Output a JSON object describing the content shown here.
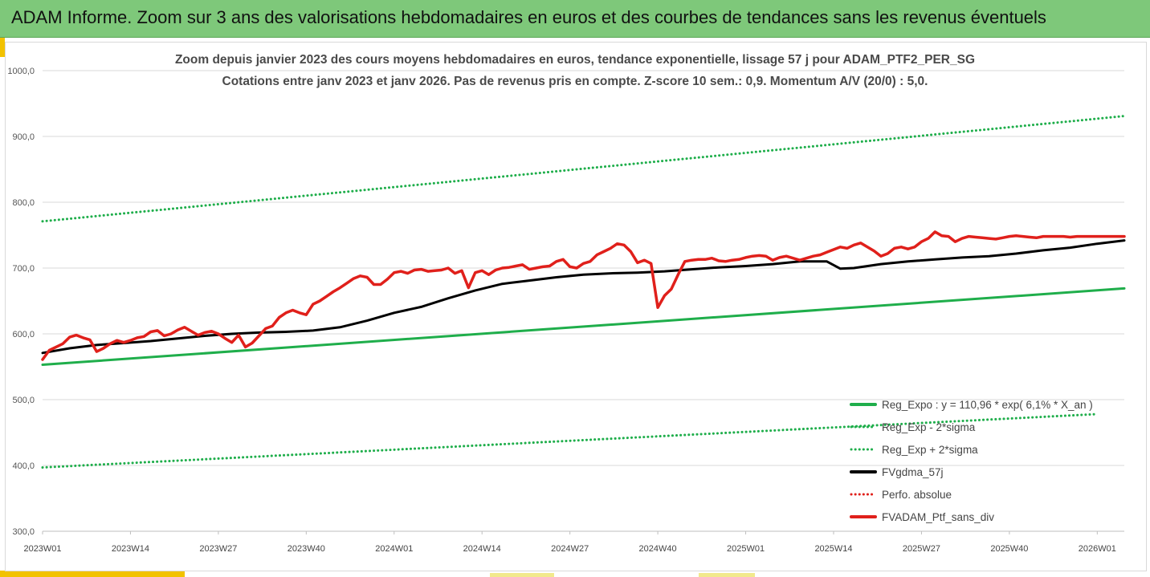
{
  "banner": {
    "title": "ADAM Informe. Zoom sur 3 ans des valorisations hebdomadaires en euros et des courbes de tendances sans les revenus éventuels",
    "color": "#7ec87a"
  },
  "chart_data": {
    "type": "line",
    "title": "Zoom depuis janvier 2023 des cours moyens hebdomadaires  en euros, tendance exponentielle, lissage 57 j pour ADAM_PTF2_PER_SG",
    "subtitle": "Cotations entre janv 2023 et janv 2026. Pas de revenus pris en compte. Z-score 10 sem.: 0,9. Momentum  A/V (20/0) : 5,0.",
    "xlabel": "",
    "ylabel": "",
    "ylim": [
      300,
      1000
    ],
    "yticks": [
      "300,0",
      "400,0",
      "500,0",
      "600,0",
      "700,0",
      "800,0",
      "900,0",
      "1000,0"
    ],
    "x_tick_labels": [
      "2023W01",
      "2023W14",
      "2023W27",
      "2023W40",
      "2024W01",
      "2024W14",
      "2024W27",
      "2024W40",
      "2025W01",
      "2025W14",
      "2025W27",
      "2025W40",
      "2026W01"
    ],
    "x_tick_weeks": [
      0,
      13,
      26,
      39,
      52,
      65,
      78,
      91,
      104,
      117,
      130,
      143,
      156
    ],
    "x_max_week": 160,
    "grid": "horizontal",
    "legend_position": "bottom-right",
    "series": [
      {
        "name": "Reg_Expo : y = 110,96 * exp( 6,1% *  X_an )",
        "color": "#1fae4b",
        "style": "solid",
        "x": [
          0,
          160
        ],
        "values": [
          553,
          669
        ]
      },
      {
        "name": "Reg_Exp - 2*sigma",
        "color": "#1fae4b",
        "style": "dotted",
        "x": [
          0,
          156
        ],
        "values": [
          397,
          478
        ]
      },
      {
        "name": "Reg_Exp + 2*sigma",
        "color": "#1fae4b",
        "style": "dotted",
        "x": [
          0,
          160
        ],
        "values": [
          771,
          931
        ]
      },
      {
        "name": "FVgdma_57j",
        "color": "#000000",
        "style": "solid",
        "x": [
          0,
          4,
          8,
          12,
          16,
          20,
          24,
          28,
          32,
          36,
          40,
          44,
          48,
          52,
          56,
          60,
          64,
          68,
          72,
          76,
          80,
          84,
          88,
          92,
          96,
          100,
          104,
          108,
          112,
          116,
          118,
          120,
          124,
          128,
          132,
          136,
          140,
          144,
          148,
          152,
          156,
          160
        ],
        "values": [
          571,
          578,
          583,
          586,
          589,
          593,
          597,
          600,
          602,
          603,
          605,
          610,
          620,
          632,
          641,
          654,
          666,
          676,
          681,
          686,
          690,
          692,
          693,
          695,
          698,
          701,
          703,
          706,
          710,
          710,
          699,
          700,
          706,
          710,
          713,
          716,
          718,
          722,
          727,
          731,
          737,
          742
        ]
      },
      {
        "name": "Perfo. absolue",
        "color": "#e0201b",
        "style": "dotted",
        "x": [],
        "values": []
      },
      {
        "name": "FVADAM_Ptf_sans_div",
        "color": "#e0201b",
        "style": "solid",
        "x": [
          0,
          1,
          2,
          3,
          4,
          5,
          6,
          7,
          8,
          9,
          10,
          11,
          12,
          13,
          14,
          15,
          16,
          17,
          18,
          19,
          20,
          21,
          22,
          23,
          24,
          25,
          26,
          27,
          28,
          29,
          30,
          31,
          32,
          33,
          34,
          35,
          36,
          37,
          38,
          39,
          40,
          41,
          42,
          43,
          44,
          45,
          46,
          47,
          48,
          49,
          50,
          51,
          52,
          53,
          54,
          55,
          56,
          57,
          58,
          59,
          60,
          61,
          62,
          63,
          64,
          65,
          66,
          67,
          68,
          69,
          70,
          71,
          72,
          73,
          74,
          75,
          76,
          77,
          78,
          79,
          80,
          81,
          82,
          83,
          84,
          85,
          86,
          87,
          88,
          89,
          90,
          91,
          92,
          93,
          94,
          95,
          96,
          97,
          98,
          99,
          100,
          101,
          102,
          103,
          104,
          105,
          106,
          107,
          108,
          109,
          110,
          111,
          112,
          113,
          114,
          115,
          116,
          117,
          118,
          119,
          120,
          121,
          122,
          123,
          124,
          125,
          126,
          127,
          128,
          129,
          130,
          131,
          132,
          133,
          134,
          135,
          136,
          137,
          138,
          139,
          140,
          141,
          142,
          143,
          144,
          145,
          146,
          147,
          148,
          149,
          150,
          151,
          152,
          153,
          154,
          155,
          156,
          157,
          158,
          159,
          160
        ],
        "values": [
          561,
          575,
          580,
          585,
          595,
          598,
          594,
          591,
          573,
          578,
          585,
          590,
          587,
          590,
          594,
          596,
          603,
          605,
          597,
          600,
          606,
          610,
          604,
          598,
          602,
          604,
          600,
          593,
          587,
          598,
          580,
          586,
          597,
          608,
          612,
          625,
          632,
          636,
          632,
          629,
          645,
          650,
          657,
          664,
          670,
          677,
          684,
          688,
          686,
          675,
          675,
          683,
          693,
          695,
          692,
          697,
          698,
          695,
          696,
          697,
          700,
          692,
          696,
          670,
          693,
          696,
          690,
          697,
          700,
          701,
          703,
          705,
          698,
          700,
          702,
          703,
          710,
          713,
          702,
          700,
          707,
          710,
          720,
          725,
          730,
          737,
          735,
          725,
          708,
          712,
          707,
          640,
          658,
          668,
          690,
          710,
          712,
          713,
          713,
          715,
          711,
          710,
          712,
          713,
          716,
          718,
          719,
          718,
          712,
          716,
          718,
          715,
          712,
          715,
          718,
          720,
          724,
          728,
          732,
          730,
          735,
          738,
          732,
          726,
          718,
          722,
          730,
          732,
          729,
          732,
          740,
          745,
          755,
          749,
          748,
          740,
          745,
          748,
          747,
          746,
          745,
          744,
          746,
          748,
          749,
          748,
          747,
          746,
          748,
          748,
          748,
          748,
          747,
          748,
          748,
          748,
          748,
          748,
          748,
          748,
          748
        ]
      }
    ]
  }
}
